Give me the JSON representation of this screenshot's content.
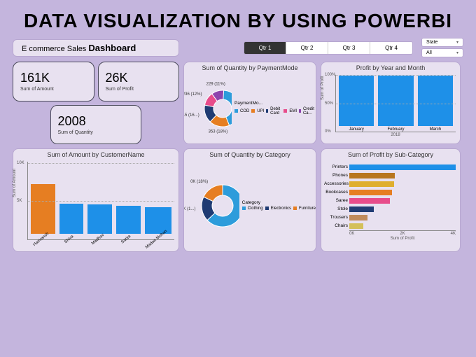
{
  "headline": "DATA VISUALIZATION BY USING POWERBI",
  "dashboard_title_prefix": "E commerce Sales ",
  "dashboard_title_bold": "Dashboard",
  "slicer": {
    "items": [
      "Qtr 1",
      "Qtr 2",
      "Qtr 3",
      "Qtr 4"
    ],
    "active": 0
  },
  "dropdowns": {
    "state": "State",
    "all": "All"
  },
  "kpi": {
    "amount": {
      "value": "161K",
      "label": "Sum of Amount"
    },
    "profit": {
      "value": "26K",
      "label": "Sum of Profit"
    },
    "qty": {
      "value": "2008",
      "label": "Sum of Quantity"
    }
  },
  "donut_payment": {
    "title": "Sum of Quantity by PaymentMode",
    "legend_title": "PaymentMo...",
    "slices": [
      {
        "label": "875 (44%)",
        "pct": 44,
        "color": "#2d9cdb",
        "legend": "COD"
      },
      {
        "label": "353 (18%)",
        "pct": 18,
        "color": "#e67e22",
        "legend": "UPI"
      },
      {
        "label": "315 (16...)",
        "pct": 16,
        "color": "#1f3b73",
        "legend": "Debit Card"
      },
      {
        "label": "236 (12%)",
        "pct": 12,
        "color": "#e74c8b",
        "legend": "EMI"
      },
      {
        "label": "229 (11%)",
        "pct": 11,
        "color": "#8e44ad",
        "legend": "Credit Ca..."
      }
    ]
  },
  "profit_month": {
    "title": "Profit by Year and Month",
    "ylabel": "Sum of Profit",
    "xlabel": "2018",
    "yticks": [
      "100%",
      "50%",
      "0%"
    ],
    "bars": [
      {
        "label": "January",
        "value": 100,
        "color": "#1e90e8"
      },
      {
        "label": "February",
        "value": 100,
        "color": "#1e90e8"
      },
      {
        "label": "March",
        "value": 100,
        "color": "#1e90e8"
      }
    ]
  },
  "amount_customer": {
    "title": "Sum of Amount by CustomerName",
    "ylabel": "Sum of Amount",
    "yticks": [
      "10K",
      "5K"
    ],
    "bars": [
      {
        "label": "Harivansh",
        "value": 98,
        "color": "#e67e22"
      },
      {
        "label": "Shiva",
        "value": 60,
        "color": "#1e90e8"
      },
      {
        "label": "Madhav",
        "value": 58,
        "color": "#1e90e8"
      },
      {
        "label": "Sarita",
        "value": 55,
        "color": "#1e90e8"
      },
      {
        "label": "Madan Mohan",
        "value": 53,
        "color": "#1e90e8"
      }
    ]
  },
  "donut_category": {
    "title": "Sum of Quantity by Category",
    "legend_title": "Category",
    "slices": [
      {
        "label": "1K (63%)",
        "pct": 63,
        "color": "#2d9cdb",
        "legend": "Clothing"
      },
      {
        "label": "0K (1...)",
        "pct": 19,
        "color": "#1f3b73",
        "legend": "Electronics"
      },
      {
        "label": "0K (18%)",
        "pct": 18,
        "color": "#e67e22",
        "legend": "Furniture"
      }
    ]
  },
  "profit_subcat": {
    "title": "Sum of Profit by Sub-Category",
    "xlabel": "Sum of Profit",
    "xticks": [
      "0K",
      "2K",
      "4K"
    ],
    "bars": [
      {
        "label": "Printers",
        "value": 100,
        "color": "#1e90e8"
      },
      {
        "label": "Phones",
        "value": 43,
        "color": "#b8761f"
      },
      {
        "label": "Accessories",
        "value": 42,
        "color": "#dfae2e"
      },
      {
        "label": "Bookcases",
        "value": 40,
        "color": "#e67e22"
      },
      {
        "label": "Saree",
        "value": 38,
        "color": "#e74c8b"
      },
      {
        "label": "Stole",
        "value": 23,
        "color": "#1f3b73"
      },
      {
        "label": "Trousers",
        "value": 17,
        "color": "#c08b5c"
      },
      {
        "label": "Chairs",
        "value": 13,
        "color": "#d4c05a"
      }
    ]
  }
}
